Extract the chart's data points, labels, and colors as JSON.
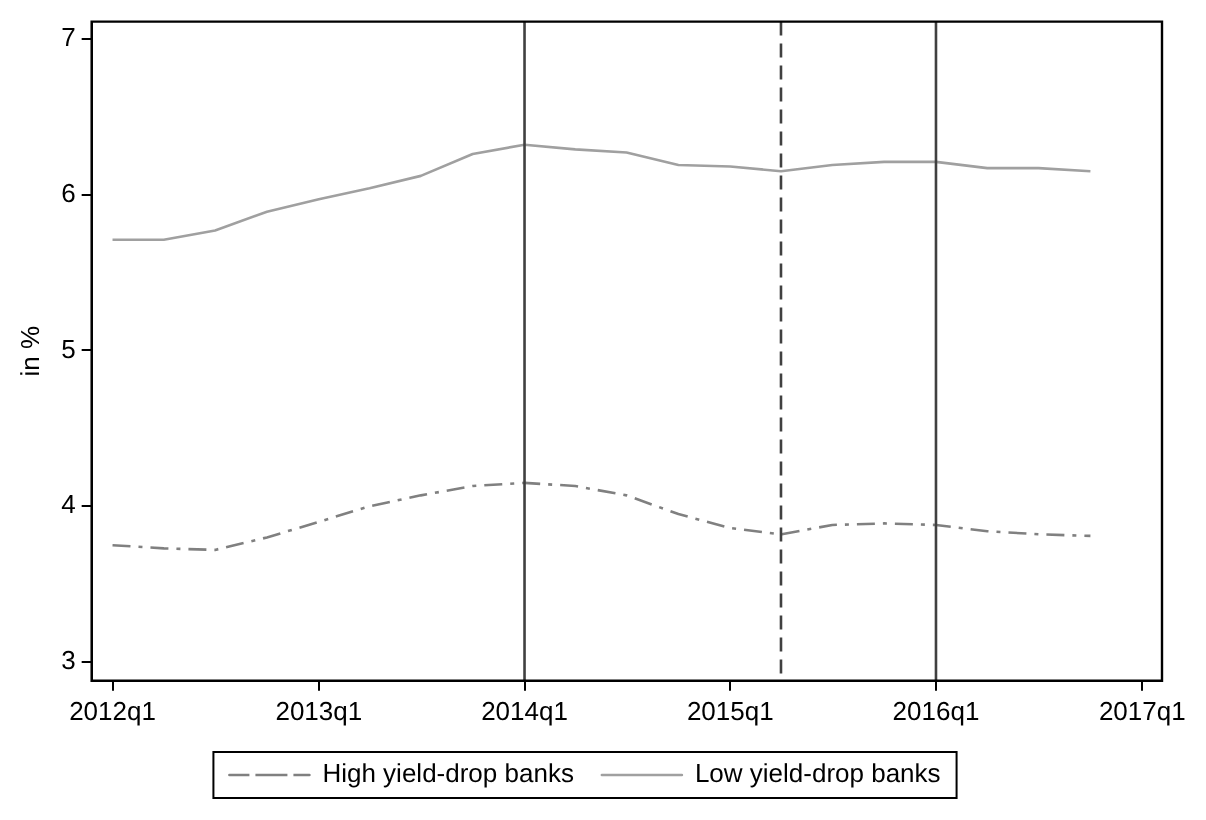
{
  "chart_data": {
    "type": "line",
    "ylabel": "in %",
    "x": [
      "2012-01",
      "2012-04",
      "2012-07",
      "2012-10",
      "2013-01",
      "2013-04",
      "2013-07",
      "2013-10",
      "2014-01",
      "2014-04",
      "2014-07",
      "2014-10",
      "2015-01",
      "2015-04",
      "2015-07",
      "2015-10",
      "2016-01",
      "2016-04",
      "2016-07",
      "2016-10"
    ],
    "series": [
      {
        "name": "High yield-drop banks",
        "color": "#808080",
        "line_style": "dashed",
        "values": [
          3.75,
          3.73,
          3.72,
          3.8,
          3.9,
          4.0,
          4.07,
          4.13,
          4.15,
          4.13,
          4.07,
          3.95,
          3.86,
          3.82,
          3.88,
          3.89,
          3.88,
          3.84,
          3.82,
          3.81
        ]
      },
      {
        "name": "Low yield-drop banks",
        "color": "#a0a0a0",
        "line_style": "solid",
        "values": [
          5.71,
          5.71,
          5.77,
          5.89,
          5.97,
          6.04,
          6.12,
          6.26,
          6.32,
          6.29,
          6.27,
          6.19,
          6.18,
          6.15,
          6.19,
          6.21,
          6.21,
          6.17,
          6.17,
          6.15
        ]
      }
    ],
    "xlim": [
      "2011-11-25",
      "2017-02-05"
    ],
    "xticks": [
      {
        "value": "2012-01",
        "label": "2012q1"
      },
      {
        "value": "2013-01",
        "label": "2013q1"
      },
      {
        "value": "2014-01",
        "label": "2014q1"
      },
      {
        "value": "2015-01",
        "label": "2015q1"
      },
      {
        "value": "2016-01",
        "label": "2016q1"
      },
      {
        "value": "2017-01",
        "label": "2017q1"
      }
    ],
    "ylim": [
      2.88,
      7.11
    ],
    "yticks": [
      3,
      4,
      5,
      6,
      7
    ],
    "ref_lines": [
      {
        "axis": "x",
        "value": "2014-01",
        "color": "#404040",
        "line_style": "solid"
      },
      {
        "axis": "x",
        "value": "2015-04",
        "color": "#404040",
        "line_style": "dashed"
      },
      {
        "axis": "x",
        "value": "2016-01",
        "color": "#404040",
        "line_style": "solid"
      }
    ],
    "grid": false,
    "legend": "bottom",
    "marker": "none"
  }
}
